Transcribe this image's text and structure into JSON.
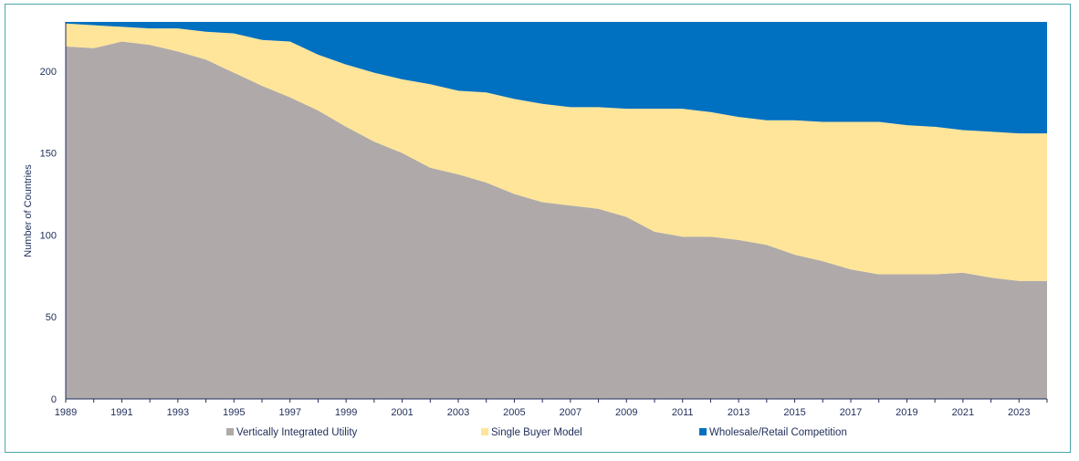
{
  "chart_data": {
    "type": "area",
    "stacked": true,
    "ylabel": "Number of Countries",
    "xlabel": "",
    "ylim": [
      0,
      230
    ],
    "yticks": [
      0,
      50,
      100,
      150,
      200
    ],
    "x": [
      1989,
      1990,
      1991,
      1992,
      1993,
      1994,
      1995,
      1996,
      1997,
      1998,
      1999,
      2000,
      2001,
      2002,
      2003,
      2004,
      2005,
      2006,
      2007,
      2008,
      2009,
      2010,
      2011,
      2012,
      2013,
      2014,
      2015,
      2016,
      2017,
      2018,
      2019,
      2020,
      2021,
      2022,
      2023,
      2024
    ],
    "xtick_labels": [
      "1989",
      "1991",
      "1993",
      "1995",
      "1997",
      "1999",
      "2001",
      "2003",
      "2005",
      "2007",
      "2009",
      "2011",
      "2013",
      "2015",
      "2017",
      "2019",
      "2021",
      "2023"
    ],
    "legend_position": "bottom",
    "grid": false,
    "series": [
      {
        "name": "Vertically Integrated Utility",
        "color": "#afaaa9",
        "values": [
          215,
          214,
          218,
          216,
          212,
          207,
          199,
          191,
          184,
          176,
          166,
          157,
          150,
          141,
          137,
          132,
          125,
          120,
          118,
          116,
          111,
          102,
          99,
          99,
          97,
          94,
          88,
          84,
          79,
          76,
          76,
          76,
          77,
          74,
          72,
          72
        ]
      },
      {
        "name": "Single Buyer Model",
        "color": "#ffe599",
        "values": [
          14,
          14,
          9,
          10,
          14,
          17,
          24,
          28,
          34,
          34,
          38,
          42,
          45,
          51,
          51,
          55,
          58,
          60,
          60,
          62,
          66,
          75,
          78,
          76,
          75,
          76,
          82,
          85,
          90,
          93,
          91,
          90,
          87,
          89,
          90,
          90
        ]
      },
      {
        "name": "Wholesale/Retail Competition",
        "color": "#0070c0",
        "values": [
          1,
          2,
          3,
          4,
          4,
          6,
          7,
          11,
          12,
          20,
          26,
          31,
          35,
          38,
          42,
          43,
          47,
          50,
          52,
          52,
          53,
          53,
          53,
          55,
          58,
          60,
          60,
          61,
          61,
          61,
          63,
          64,
          66,
          67,
          68,
          68
        ]
      }
    ]
  }
}
